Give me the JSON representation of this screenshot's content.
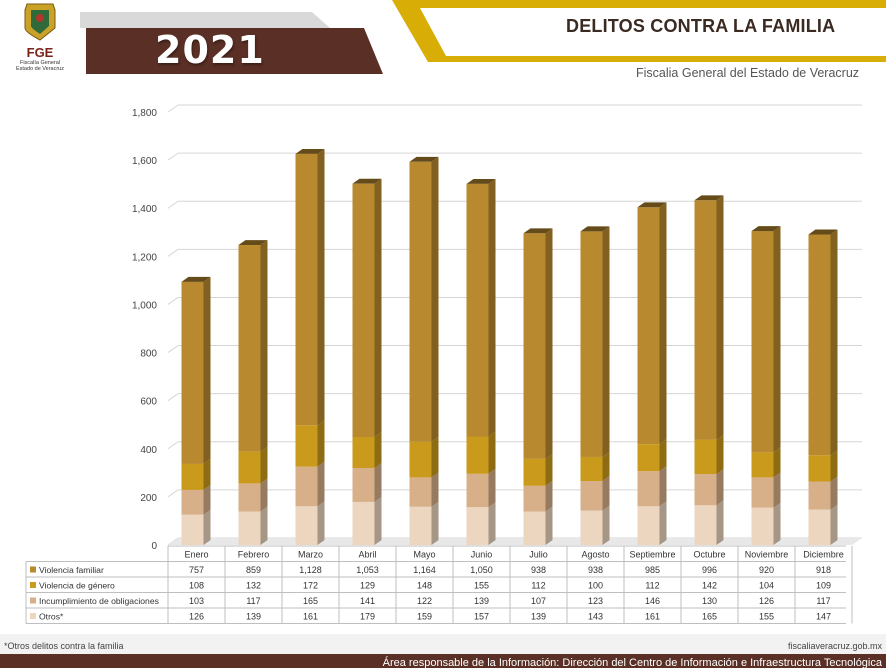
{
  "header": {
    "year": "2021",
    "title": "DELITOS CONTRA LA FAMILIA",
    "subtitle": "Fiscalia General del Estado de Veracruz",
    "logo_text": "FGE",
    "logo_subtext": "Fiscalía General\nEstado de Veracruz"
  },
  "footer": {
    "note": "*Otros delitos contra la familia",
    "website": "fiscaliaveracruz.gob.mx",
    "responsible": "Área responsable de la Información: Dirección del Centro de Información e Infraestructura Tecnológica"
  },
  "colors": {
    "violencia_familiar": "#b8892e",
    "violencia_genero": "#c99a1c",
    "incumplimiento": "#d7b08a",
    "otros": "#ecd6c0",
    "banner_dark": "#5a2f25",
    "banner_gold": "#d8ad05"
  },
  "chart_data": {
    "type": "bar",
    "stacked": true,
    "three_d": true,
    "categories": [
      "Enero",
      "Febrero",
      "Marzo",
      "Abril",
      "Mayo",
      "Junio",
      "Julio",
      "Agosto",
      "Septiembre",
      "Octubre",
      "Noviembre",
      "Diciembre"
    ],
    "series": [
      {
        "name": "Otros*",
        "values": [
          126,
          139,
          161,
          179,
          159,
          157,
          139,
          143,
          161,
          165,
          155,
          147
        ]
      },
      {
        "name": "Incumplimiento de obligaciones",
        "values": [
          103,
          117,
          165,
          141,
          122,
          139,
          107,
          123,
          146,
          130,
          126,
          117
        ]
      },
      {
        "name": "Violencia de género",
        "values": [
          108,
          132,
          172,
          129,
          148,
          155,
          112,
          100,
          112,
          142,
          104,
          109
        ]
      },
      {
        "name": "Violencia familiar",
        "values": [
          757,
          859,
          1128,
          1053,
          1164,
          1050,
          938,
          938,
          985,
          996,
          920,
          918
        ]
      }
    ],
    "table_series_order": [
      "Violencia familiar",
      "Violencia de género",
      "Incumplimiento de obligaciones",
      "Otros*"
    ],
    "ylim": [
      0,
      1800
    ],
    "yticks": [
      0,
      200,
      400,
      600,
      800,
      1000,
      1200,
      1400,
      1600,
      1800
    ],
    "ytick_labels": [
      "0",
      "200",
      "400",
      "600",
      "800",
      "1,000",
      "1,200",
      "1,400",
      "1,600",
      "1,800"
    ],
    "grid": true,
    "legend": "data table below chart"
  }
}
